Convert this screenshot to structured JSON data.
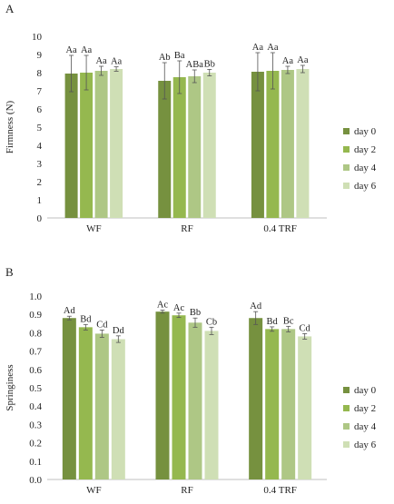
{
  "colors": [
    "#76913f",
    "#95b84f",
    "#aec785",
    "#cfdfb5"
  ],
  "chart_data": [
    {
      "type": "bar",
      "panel_label": "A",
      "ylabel": "Firmness (N)",
      "ylim": [
        0,
        10
      ],
      "yticks": [
        "0",
        "1",
        "2",
        "3",
        "4",
        "5",
        "6",
        "7",
        "8",
        "9",
        "10"
      ],
      "ytick_values": [
        0,
        1,
        2,
        3,
        4,
        5,
        6,
        7,
        8,
        9,
        10
      ],
      "categories": [
        "WF",
        "RF",
        "0.4 TRF"
      ],
      "legend_position": "right",
      "series": [
        {
          "name": "day 0",
          "values": [
            7.95,
            7.55,
            8.05
          ],
          "errors": [
            1.0,
            1.0,
            1.05
          ],
          "labels": [
            "Aa",
            "Ab",
            "Aa"
          ]
        },
        {
          "name": "day 2",
          "values": [
            8.0,
            7.75,
            8.1
          ],
          "errors": [
            0.95,
            0.9,
            1.0
          ],
          "labels": [
            "Aa",
            "Ba",
            "Aa"
          ]
        },
        {
          "name": "day 4",
          "values": [
            8.1,
            7.8,
            8.15
          ],
          "errors": [
            0.25,
            0.35,
            0.2
          ],
          "labels": [
            "Aa",
            "ABa",
            "Aa"
          ]
        },
        {
          "name": "day 6",
          "values": [
            8.2,
            8.0,
            8.2
          ],
          "errors": [
            0.12,
            0.18,
            0.2
          ],
          "labels": [
            "Aa",
            "Bb",
            "Aa"
          ]
        }
      ]
    },
    {
      "type": "bar",
      "panel_label": "B",
      "ylabel": "Springiness",
      "ylim": [
        0,
        1.0
      ],
      "yticks": [
        "0.0",
        "0.1",
        "0.2",
        "0.3",
        "0.4",
        "0.5",
        "0.6",
        "0.7",
        "0.8",
        "0.9",
        "1.0"
      ],
      "ytick_values": [
        0,
        0.1,
        0.2,
        0.3,
        0.4,
        0.5,
        0.6,
        0.7,
        0.8,
        0.9,
        1.0
      ],
      "categories": [
        "WF",
        "RF",
        "0.4 TRF"
      ],
      "legend_position": "right",
      "series": [
        {
          "name": "day 0",
          "values": [
            0.88,
            0.915,
            0.88
          ],
          "errors": [
            0.01,
            0.008,
            0.035
          ],
          "labels": [
            "Ad",
            "Ac",
            "Ad"
          ]
        },
        {
          "name": "day 2",
          "values": [
            0.83,
            0.895,
            0.82
          ],
          "errors": [
            0.015,
            0.012,
            0.012
          ],
          "labels": [
            "Bd",
            "Ac",
            "Bd"
          ]
        },
        {
          "name": "day 4",
          "values": [
            0.795,
            0.855,
            0.82
          ],
          "errors": [
            0.02,
            0.025,
            0.015
          ],
          "labels": [
            "Cd",
            "Bb",
            "Bc"
          ]
        },
        {
          "name": "day 6",
          "values": [
            0.765,
            0.81,
            0.78
          ],
          "errors": [
            0.018,
            0.02,
            0.015
          ],
          "labels": [
            "Dd",
            "Cb",
            "Cd"
          ]
        }
      ]
    }
  ]
}
